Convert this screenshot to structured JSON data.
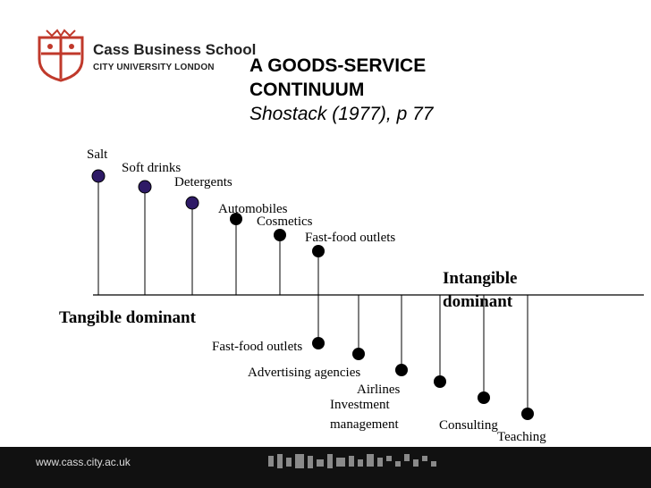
{
  "header": {
    "school_name": "Cass Business School",
    "school_sub": "CITY UNIVERSITY LONDON",
    "title_line1": "A GOODS-SERVICE",
    "title_line2": "CONTINUUM",
    "title_cite": "Shostack (1977), p 77"
  },
  "axis": {
    "left_label": "Tangible dominant",
    "right_label_line1": "Intangible",
    "right_label_line2": "dominant"
  },
  "tangible_items": [
    {
      "label": "Salt"
    },
    {
      "label": "Soft drinks"
    },
    {
      "label": "Detergents"
    },
    {
      "label": "Automobiles"
    },
    {
      "label": "Cosmetics"
    },
    {
      "label": "Fast-food outlets"
    }
  ],
  "intangible_items": [
    {
      "label": "Fast-food outlets"
    },
    {
      "label": "Advertising agencies"
    },
    {
      "label": "Airlines"
    },
    {
      "label": "Investment",
      "label2": "management"
    },
    {
      "label": "Consulting"
    },
    {
      "label": "Teaching"
    }
  ],
  "colors": {
    "tangible_marker": "#2e1a66",
    "intangible_marker": "#000000",
    "brand_red": "#c0392b",
    "footer": "#111111"
  },
  "footer": {
    "url": "www.cass.city.ac.uk"
  }
}
